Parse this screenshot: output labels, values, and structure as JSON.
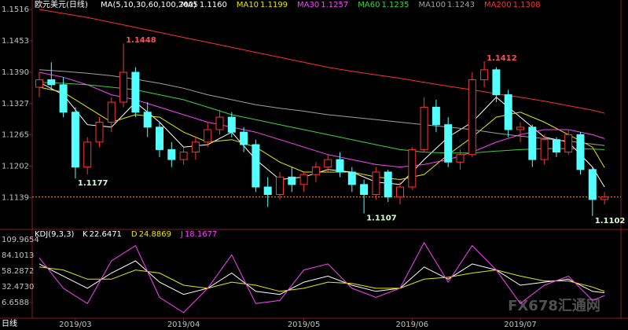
{
  "chart_data": {
    "type": "candlestick",
    "title": "欧元美元(日线)",
    "indicator": "MA(5,10,30,60,100,200)",
    "period_label": "日线",
    "watermark": "FX678汇通网",
    "ylim": [
      1.1086,
      1.1516
    ],
    "yticks": [
      1.1516,
      1.1453,
      {
        "value": 1.139,
        "label": "1.1390"
      },
      1.1327,
      1.1265,
      1.1202,
      1.1139
    ],
    "xticks": [
      {
        "value": 3,
        "label": "2019/03"
      },
      {
        "value": 12,
        "label": "2019/04"
      },
      {
        "value": 22,
        "label": "2019/05"
      },
      {
        "value": 31,
        "label": "2019/06"
      },
      {
        "value": 40,
        "label": "2019/07"
      }
    ],
    "up_color": "#ff3232",
    "down_color": "#54ffff",
    "price_line": 1.114,
    "price_line_color": "#ff9a00",
    "ohlc": [
      [
        1.136,
        1.139,
        1.134,
        1.1375
      ],
      [
        1.1375,
        1.141,
        1.1355,
        1.1365
      ],
      [
        1.1365,
        1.138,
        1.13,
        1.131
      ],
      [
        1.131,
        1.132,
        1.1177,
        1.12
      ],
      [
        1.12,
        1.126,
        1.1185,
        1.125
      ],
      [
        1.125,
        1.13,
        1.124,
        1.129
      ],
      [
        1.129,
        1.134,
        1.127,
        1.133
      ],
      [
        1.133,
        1.1448,
        1.132,
        1.139
      ],
      [
        1.139,
        1.14,
        1.13,
        1.131
      ],
      [
        1.131,
        1.133,
        1.126,
        1.128
      ],
      [
        1.128,
        1.129,
        1.122,
        1.1235
      ],
      [
        1.1235,
        1.125,
        1.12,
        1.1215
      ],
      [
        1.1215,
        1.124,
        1.1205,
        1.123
      ],
      [
        1.123,
        1.126,
        1.1215,
        1.125
      ],
      [
        1.125,
        1.129,
        1.124,
        1.1275
      ],
      [
        1.1275,
        1.1315,
        1.1265,
        1.13
      ],
      [
        1.13,
        1.131,
        1.126,
        1.127
      ],
      [
        1.127,
        1.128,
        1.123,
        1.1245
      ],
      [
        1.1245,
        1.1255,
        1.115,
        1.116
      ],
      [
        1.116,
        1.118,
        1.112,
        1.1145
      ],
      [
        1.1145,
        1.119,
        1.1135,
        1.118
      ],
      [
        1.118,
        1.12,
        1.115,
        1.1165
      ],
      [
        1.1165,
        1.119,
        1.115,
        1.1185
      ],
      [
        1.1185,
        1.121,
        1.117,
        1.12
      ],
      [
        1.12,
        1.1225,
        1.119,
        1.1215
      ],
      [
        1.1215,
        1.123,
        1.118,
        1.119
      ],
      [
        1.119,
        1.12,
        1.115,
        1.1165
      ],
      [
        1.1165,
        1.1175,
        1.1107,
        1.1145
      ],
      [
        1.1145,
        1.12,
        1.1135,
        1.119
      ],
      [
        1.119,
        1.1195,
        1.113,
        1.114
      ],
      [
        1.114,
        1.117,
        1.1125,
        1.116
      ],
      [
        1.116,
        1.124,
        1.1155,
        1.1235
      ],
      [
        1.1235,
        1.134,
        1.123,
        1.132
      ],
      [
        1.132,
        1.1335,
        1.127,
        1.1285
      ],
      [
        1.1285,
        1.13,
        1.12,
        1.121
      ],
      [
        1.121,
        1.1235,
        1.1195,
        1.1225
      ],
      [
        1.1225,
        1.139,
        1.122,
        1.1375
      ],
      [
        1.1375,
        1.1412,
        1.136,
        1.1395
      ],
      [
        1.1395,
        1.14,
        1.133,
        1.1345
      ],
      [
        1.1345,
        1.1355,
        1.126,
        1.1275
      ],
      [
        1.1275,
        1.129,
        1.125,
        1.128
      ],
      [
        1.128,
        1.1285,
        1.12,
        1.1215
      ],
      [
        1.1215,
        1.1265,
        1.1205,
        1.1255
      ],
      [
        1.1255,
        1.126,
        1.122,
        1.123
      ],
      [
        1.123,
        1.1275,
        1.1225,
        1.1265
      ],
      [
        1.1265,
        1.127,
        1.1185,
        1.1195
      ],
      [
        1.1195,
        1.12,
        1.1102,
        1.1135
      ],
      [
        1.1135,
        1.115,
        1.1125,
        1.114
      ]
    ],
    "annotations": [
      {
        "index": 7,
        "value": 1.1448,
        "color": "#ff5050"
      },
      {
        "index": 3,
        "value": 1.1177,
        "color": "#d0ffd0"
      },
      {
        "index": 27,
        "value": 1.1107,
        "color": "#d0ffd0"
      },
      {
        "index": 37,
        "value": 1.1412,
        "color": "#ff5050"
      },
      {
        "index": 46,
        "value": 1.1102,
        "color": "#d0ffd0"
      }
    ],
    "line_x": [
      0,
      2,
      4,
      6,
      8,
      10,
      12,
      14,
      16,
      18,
      20,
      22,
      24,
      26,
      28,
      30,
      32,
      34,
      36,
      38,
      40,
      42,
      44,
      46,
      47
    ],
    "series": [
      {
        "name": "MA5",
        "last_label": "1.1160",
        "color": "#ffffff",
        "values": [
          1.137,
          1.1345,
          1.1285,
          1.128,
          1.133,
          1.129,
          1.124,
          1.1245,
          1.127,
          1.1215,
          1.1175,
          1.118,
          1.1195,
          1.119,
          1.117,
          1.1165,
          1.1215,
          1.126,
          1.129,
          1.134,
          1.13,
          1.126,
          1.125,
          1.12,
          1.116
        ]
      },
      {
        "name": "MA10",
        "last_label": "1.1199",
        "color": "#e8e800",
        "values": [
          1.136,
          1.135,
          1.132,
          1.129,
          1.1305,
          1.13,
          1.127,
          1.125,
          1.1255,
          1.124,
          1.121,
          1.119,
          1.119,
          1.119,
          1.118,
          1.1175,
          1.1185,
          1.1225,
          1.126,
          1.13,
          1.131,
          1.129,
          1.1265,
          1.124,
          1.1199
        ]
      },
      {
        "name": "MA30",
        "last_label": "1.1257",
        "color": "#ff40ff",
        "values": [
          1.139,
          1.138,
          1.1365,
          1.1345,
          1.1335,
          1.132,
          1.1305,
          1.129,
          1.128,
          1.127,
          1.1255,
          1.124,
          1.1225,
          1.1215,
          1.1205,
          1.12,
          1.1205,
          1.1215,
          1.123,
          1.125,
          1.1265,
          1.1275,
          1.1275,
          1.1265,
          1.1257
        ]
      },
      {
        "name": "MA60",
        "last_label": "1.1235",
        "color": "#40d040",
        "values": [
          1.137,
          1.1368,
          1.1365,
          1.136,
          1.1355,
          1.1345,
          1.1335,
          1.132,
          1.1305,
          1.1295,
          1.1285,
          1.1275,
          1.1265,
          1.1255,
          1.1245,
          1.1235,
          1.123,
          1.1228,
          1.1228,
          1.1232,
          1.1235,
          1.1237,
          1.1237,
          1.1236,
          1.1235
        ]
      },
      {
        "name": "MA100",
        "last_label": "1.1243",
        "color": "#a0a0a0",
        "values": [
          1.1395,
          1.1392,
          1.1388,
          1.1383,
          1.1376,
          1.1368,
          1.1358,
          1.1345,
          1.1335,
          1.1325,
          1.1318,
          1.1312,
          1.1305,
          1.13,
          1.1295,
          1.129,
          1.1285,
          1.128,
          1.1275,
          1.1268,
          1.1262,
          1.1257,
          1.1252,
          1.1246,
          1.1243
        ]
      },
      {
        "name": "MA200",
        "last_label": "1.1308",
        "color": "#ff3030",
        "values": [
          1.1516,
          1.1508,
          1.15,
          1.149,
          1.148,
          1.147,
          1.146,
          1.145,
          1.144,
          1.143,
          1.142,
          1.141,
          1.14,
          1.1392,
          1.1385,
          1.1378,
          1.137,
          1.1362,
          1.1355,
          1.1347,
          1.134,
          1.1332,
          1.1323,
          1.1314,
          1.1308
        ]
      }
    ],
    "kdj": {
      "title": "KDJ(9,3,3)",
      "ylim": [
        -19.16,
        118.9
      ],
      "yticks": [
        109.9654,
        84.1013,
        58.2872,
        {
          "value": 32.473,
          "label": "32.4730"
        },
        6.6588
      ],
      "series": [
        {
          "name": "K",
          "last_label": "22.6471",
          "color": "#ffffff",
          "values": [
            70,
            50,
            30,
            55,
            75,
            40,
            20,
            30,
            55,
            25,
            20,
            40,
            50,
            35,
            25,
            30,
            65,
            45,
            70,
            60,
            35,
            40,
            45,
            25,
            22.6471
          ]
        },
        {
          "name": "D",
          "last_label": "24.8869",
          "color": "#e8e800",
          "values": [
            65,
            60,
            45,
            45,
            60,
            55,
            35,
            30,
            40,
            35,
            25,
            30,
            40,
            38,
            30,
            30,
            45,
            48,
            55,
            60,
            50,
            42,
            42,
            32,
            24.8869
          ]
        },
        {
          "name": "J",
          "last_label": "18.1677",
          "color": "#ff40ff",
          "values": [
            80,
            30,
            5,
            75,
            100,
            15,
            -10,
            30,
            85,
            5,
            10,
            60,
            70,
            30,
            15,
            30,
            105,
            40,
            100,
            60,
            5,
            35,
            50,
            10,
            18.1677
          ]
        }
      ]
    }
  }
}
